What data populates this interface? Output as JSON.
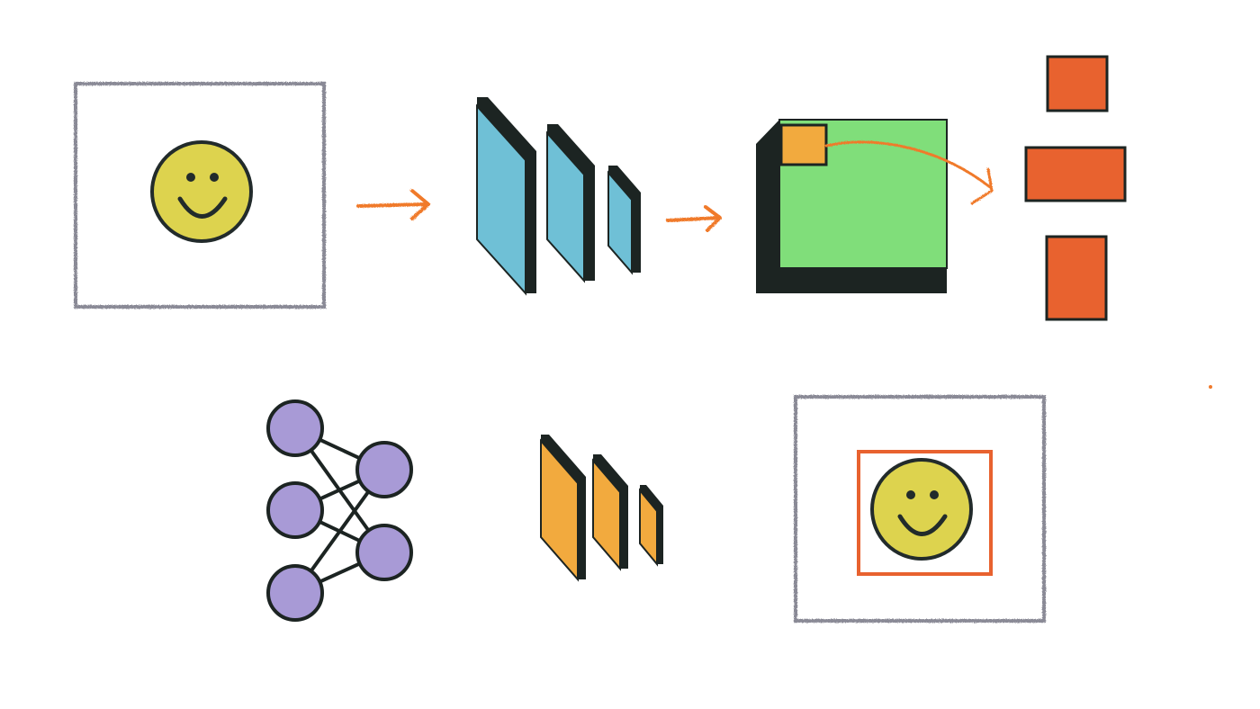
{
  "diagram": {
    "colors": {
      "frame": "#8a8a96",
      "smiley_fill": "#ddd34e",
      "smiley_stroke": "#222b2b",
      "arrow": "#f07a2c",
      "conv_face": "#6fc0d6",
      "conv_shadow": "#1c2422",
      "feature_map": "#80de7a",
      "window": "#f2aa3e",
      "output_box": "#e8622f",
      "nn_node": "#a89ad6",
      "nn_edge": "#1c2422",
      "small_conv_face": "#f2aa3e",
      "detection_box": "#e8622f"
    },
    "top_row": {
      "input_image": {
        "icon": "smiley-face-icon"
      },
      "conv_layers": {
        "count": 3
      },
      "feature_map": {
        "has_sliding_window": true
      },
      "region_proposals": {
        "count": 3
      }
    },
    "bottom_row": {
      "neural_network": {
        "layers": [
          3,
          2
        ],
        "fully_connected": true
      },
      "conv_layers": {
        "count": 3
      },
      "output_image": {
        "icon": "smiley-face-icon",
        "has_bounding_box": true
      }
    }
  }
}
